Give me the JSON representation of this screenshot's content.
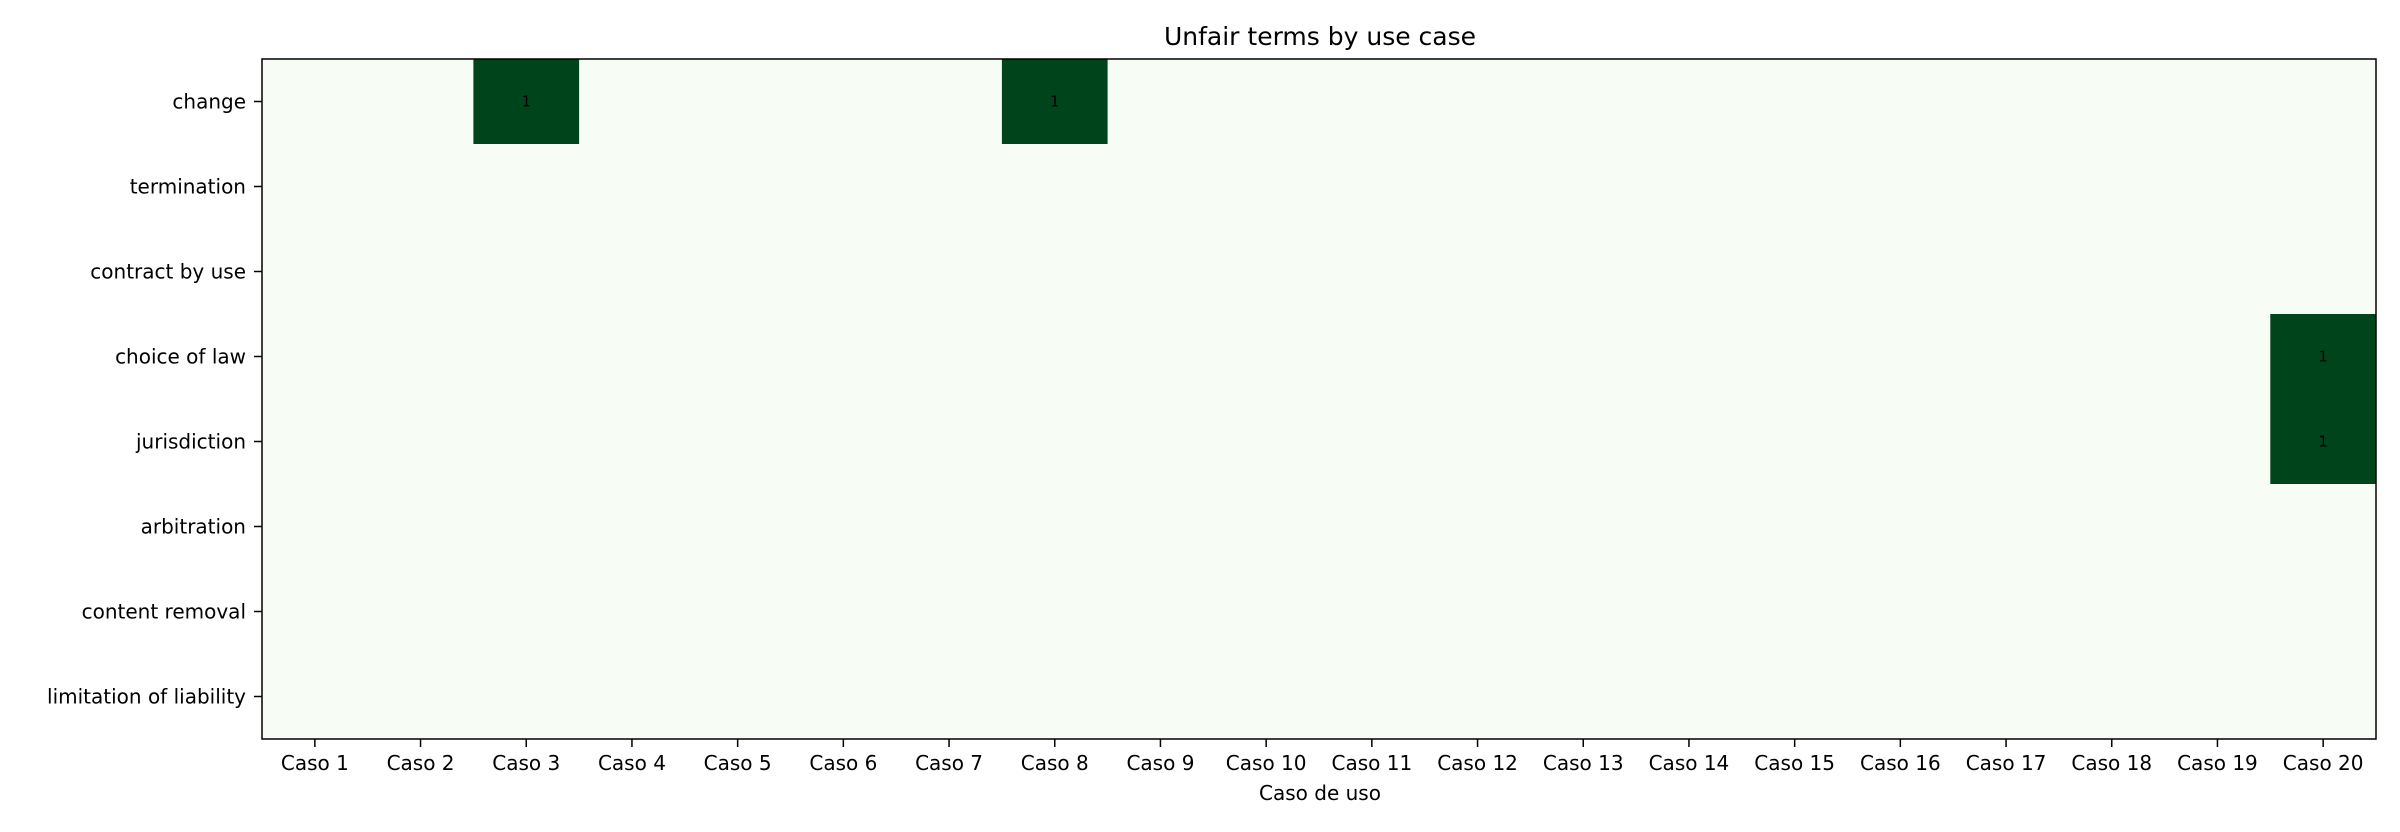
{
  "chart_data": {
    "type": "heatmap",
    "title": "Unfair terms by use case",
    "xlabel": "Caso de uso",
    "ylabel": "",
    "x_categories": [
      "Caso 1",
      "Caso 2",
      "Caso 3",
      "Caso 4",
      "Caso 5",
      "Caso 6",
      "Caso 7",
      "Caso 8",
      "Caso 9",
      "Caso 10",
      "Caso 11",
      "Caso 12",
      "Caso 13",
      "Caso 14",
      "Caso 15",
      "Caso 16",
      "Caso 17",
      "Caso 18",
      "Caso 19",
      "Caso 20"
    ],
    "y_categories": [
      "change",
      "termination",
      "contract by use",
      "choice of law",
      "jurisdiction",
      "arbitration",
      "content removal",
      "limitation of liability"
    ],
    "values": [
      [
        0,
        0,
        1,
        0,
        0,
        0,
        0,
        1,
        0,
        0,
        0,
        0,
        0,
        0,
        0,
        0,
        0,
        0,
        0,
        0
      ],
      [
        0,
        0,
        0,
        0,
        0,
        0,
        0,
        0,
        0,
        0,
        0,
        0,
        0,
        0,
        0,
        0,
        0,
        0,
        0,
        0
      ],
      [
        0,
        0,
        0,
        0,
        0,
        0,
        0,
        0,
        0,
        0,
        0,
        0,
        0,
        0,
        0,
        0,
        0,
        0,
        0,
        0
      ],
      [
        0,
        0,
        0,
        0,
        0,
        0,
        0,
        0,
        0,
        0,
        0,
        0,
        0,
        0,
        0,
        0,
        0,
        0,
        0,
        1
      ],
      [
        0,
        0,
        0,
        0,
        0,
        0,
        0,
        0,
        0,
        0,
        0,
        0,
        0,
        0,
        0,
        0,
        0,
        0,
        0,
        1
      ],
      [
        0,
        0,
        0,
        0,
        0,
        0,
        0,
        0,
        0,
        0,
        0,
        0,
        0,
        0,
        0,
        0,
        0,
        0,
        0,
        0
      ],
      [
        0,
        0,
        0,
        0,
        0,
        0,
        0,
        0,
        0,
        0,
        0,
        0,
        0,
        0,
        0,
        0,
        0,
        0,
        0,
        0
      ],
      [
        0,
        0,
        0,
        0,
        0,
        0,
        0,
        0,
        0,
        0,
        0,
        0,
        0,
        0,
        0,
        0,
        0,
        0,
        0,
        0
      ]
    ],
    "annotate_nonzero_only": true,
    "colormap": "Greens",
    "color_low": "#f7fcf5",
    "color_high": "#00441b",
    "value_range": [
      0,
      1
    ],
    "grid": false,
    "legend": "none"
  }
}
